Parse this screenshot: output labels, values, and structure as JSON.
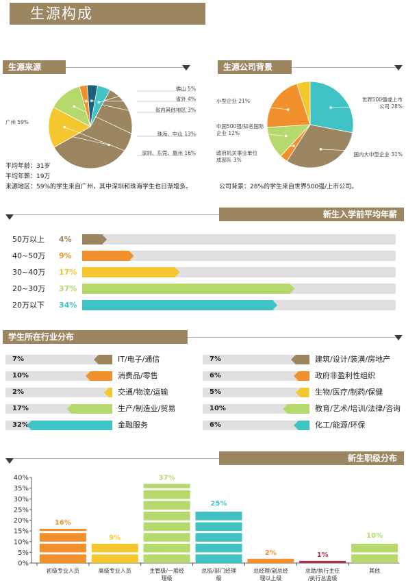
{
  "page_title": "生源构成",
  "source": {
    "title": "生源来源",
    "avg_age": "平均年龄：31岁",
    "avg_salary": "平均年薪：19万",
    "region_note": "来源地区：59%的学生来自广州，其中深圳和珠海学生也日渐增多。",
    "chart_data": {
      "type": "pie",
      "slices": [
        {
          "label": "广州 59%",
          "value": 59,
          "color": "#9c8561"
        },
        {
          "label": "深圳、东莞、惠州 16%",
          "value": 16,
          "color": "#f5c72e"
        },
        {
          "label": "珠海、中山 13%",
          "value": 13,
          "color": "#b5d96c"
        },
        {
          "label": "省内其他地区 3%",
          "value": 3,
          "color": "#f2902e"
        },
        {
          "label": "省外 4%",
          "value": 4,
          "color": "#1d5f7a"
        },
        {
          "label": "佛山 5%",
          "value": 5,
          "color": "#3fc3c4"
        }
      ]
    }
  },
  "company": {
    "title": "生源公司背景",
    "note": "公司背景：28%的学生来自世界500强/上市公司。",
    "chart_data": {
      "type": "pie",
      "slices": [
        {
          "label": "世界500强或上市公司 28%",
          "value": 28,
          "color": "#3fc3c4"
        },
        {
          "label": "国内大中型企业 31%",
          "value": 31,
          "color": "#9c8561"
        },
        {
          "label": "政府机关事业单位成部队 3%",
          "value": 3,
          "color": "#f2902e"
        },
        {
          "label": "中国500强/知名国际企业 12%",
          "value": 12,
          "color": "#b5d96c"
        },
        {
          "label": "小型企业 21%",
          "value": 21,
          "color": "#f2902e"
        },
        {
          "label": "",
          "value": 5,
          "color": "#f5c72e"
        }
      ]
    }
  },
  "salary": {
    "title": "新生入学前平均年薪",
    "chart_data": {
      "type": "bar",
      "categories": [
        "50万以上",
        "40~50万",
        "30~40万",
        "20~30万",
        "20万以下"
      ],
      "values": [
        4,
        9,
        17,
        37,
        34
      ],
      "labels": [
        "4%",
        "9%",
        "17%",
        "37%",
        "34%"
      ],
      "colors": [
        "#9c8561",
        "#f2902e",
        "#f5c72e",
        "#b5d96c",
        "#3fc3c4"
      ],
      "xlim": [
        0,
        100
      ]
    }
  },
  "industry": {
    "title": "学生所在行业分布",
    "chart_data": {
      "type": "bar",
      "left": [
        {
          "name": "IT/电子/通信",
          "value": 7,
          "label": "7%",
          "color": "#9c8561"
        },
        {
          "name": "消费品/零售",
          "value": 10,
          "label": "10%",
          "color": "#f2902e"
        },
        {
          "name": "交通/物流/运输",
          "value": 2,
          "label": "2%",
          "color": "#f5c72e"
        },
        {
          "name": "生产/制造业/贸易",
          "value": 17,
          "label": "17%",
          "color": "#b5d96c"
        },
        {
          "name": "金融服务",
          "value": 32,
          "label": "32%",
          "color": "#3fc3c4"
        }
      ],
      "right": [
        {
          "name": "建筑/设计/装潢/房地产",
          "value": 7,
          "label": "7%",
          "color": "#9c8561"
        },
        {
          "name": "政府非盈利性组织",
          "value": 6,
          "label": "6%",
          "color": "#f2902e"
        },
        {
          "name": "生物/医疗/制药/保健",
          "value": 5,
          "label": "5%",
          "color": "#f5c72e"
        },
        {
          "name": "教育/艺术/培训/法律/咨询",
          "value": 10,
          "label": "10%",
          "color": "#b5d96c"
        },
        {
          "name": "化工/能源/环保",
          "value": 6,
          "label": "6%",
          "color": "#3fc3c4"
        }
      ]
    }
  },
  "level": {
    "title": "新生职级分布",
    "chart_data": {
      "type": "bar",
      "categories": [
        "初级专业人员",
        "高级专业人员",
        "主管级/一般经理级",
        "总监/部门经理级",
        "总经理/副总经理以上级",
        "总助/执行主任/执行总监级",
        "其他"
      ],
      "values": [
        16,
        9,
        37,
        25,
        2,
        1,
        10
      ],
      "labels": [
        "16%",
        "9%",
        "37%",
        "25%",
        "2%",
        "1%",
        "10%"
      ],
      "colors": [
        "#f2902e",
        "#f5c72e",
        "#b5d96c",
        "#3fc3c4",
        "#f2902e",
        "#a8324a",
        "#b5d96c"
      ],
      "yticks": [
        "0%",
        "5%",
        "10%",
        "15%",
        "20%",
        "25%",
        "30%",
        "35%",
        "40%"
      ],
      "ylim": [
        0,
        40
      ]
    }
  }
}
